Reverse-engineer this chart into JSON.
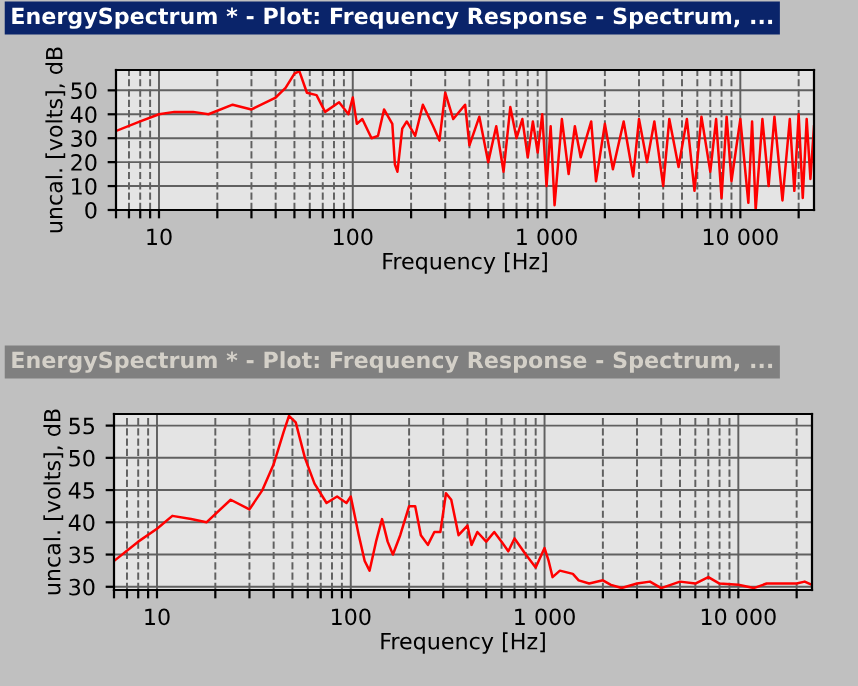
{
  "chart_data": [
    {
      "type": "line",
      "title": "EnergySpectrum * - Plot: Frequency Response - Spectrum, ...",
      "xlabel": "Frequency [Hz]",
      "ylabel": "uncal. [volts], dB",
      "log": "x",
      "grid": true,
      "xlim": [
        6,
        24000
      ],
      "ylim": [
        0,
        58.5
      ],
      "xticks": [
        {
          "value": 6,
          "label": null
        },
        {
          "value": 7,
          "label": null
        },
        {
          "value": 8,
          "label": null
        },
        {
          "value": 9,
          "label": null
        },
        10,
        {
          "value": 20,
          "label": null
        },
        {
          "value": 30,
          "label": null
        },
        {
          "value": 40,
          "label": null
        },
        {
          "value": 50,
          "label": null
        },
        {
          "value": 60,
          "label": null
        },
        {
          "value": 70,
          "label": null
        },
        {
          "value": 80,
          "label": null
        },
        {
          "value": 90,
          "label": null
        },
        100,
        {
          "value": 200,
          "label": null
        },
        {
          "value": 300,
          "label": null
        },
        {
          "value": 400,
          "label": null
        },
        {
          "value": 500,
          "label": null
        },
        {
          "value": 600,
          "label": null
        },
        {
          "value": 700,
          "label": null
        },
        {
          "value": 800,
          "label": null
        },
        {
          "value": 900,
          "label": null
        },
        {
          "value": 1000,
          "label": "1 000"
        },
        {
          "value": 2000,
          "label": null
        },
        {
          "value": 3000,
          "label": null
        },
        {
          "value": 4000,
          "label": null
        },
        {
          "value": 5000,
          "label": null
        },
        {
          "value": 6000,
          "label": null
        },
        {
          "value": 7000,
          "label": null
        },
        {
          "value": 8000,
          "label": null
        },
        {
          "value": 9000,
          "label": null
        },
        {
          "value": 10000,
          "label": "10 000"
        },
        {
          "value": 20000,
          "label": null
        }
      ],
      "yticks": [
        0,
        10,
        20,
        30,
        40,
        50
      ],
      "series": [
        {
          "color": "#ff0000",
          "x": [
            6,
            8,
            10,
            12,
            15,
            18,
            24,
            30,
            40,
            45,
            50,
            53,
            58,
            65,
            72,
            85,
            95,
            100,
            105,
            112,
            125,
            135,
            145,
            160,
            165,
            170,
            180,
            190,
            210,
            230,
            260,
            280,
            300,
            330,
            380,
            400,
            450,
            500,
            550,
            600,
            650,
            700,
            750,
            800,
            850,
            900,
            950,
            1000,
            1050,
            1100,
            1200,
            1300,
            1400,
            1500,
            1700,
            1800,
            2000,
            2200,
            2500,
            2800,
            3000,
            3300,
            3600,
            4000,
            4300,
            4800,
            5300,
            5800,
            6300,
            7000,
            7500,
            8000,
            8500,
            9000,
            10000,
            11000,
            11500,
            12000,
            13000,
            14000,
            15000,
            16500,
            18000,
            19000,
            20000,
            21000,
            22000,
            23000,
            24000
          ],
          "values": [
            33,
            37,
            40,
            41,
            41,
            40,
            44,
            42,
            47,
            51,
            57,
            58,
            49,
            48,
            41,
            45,
            40,
            47,
            36,
            38,
            30,
            31,
            42,
            36,
            19,
            16,
            34,
            37,
            31,
            44,
            35,
            29,
            49,
            38,
            44,
            27,
            39,
            20,
            35,
            16,
            43,
            30,
            38,
            22,
            37,
            24,
            40,
            10,
            35,
            2,
            38,
            15,
            35,
            22,
            37,
            12,
            36,
            17,
            37,
            14,
            38,
            20,
            37,
            10,
            38,
            18,
            38,
            8,
            39,
            16,
            38,
            5,
            39,
            12,
            38,
            3,
            37,
            0,
            38,
            10,
            39,
            4,
            38,
            8,
            40,
            5,
            38,
            13,
            35
          ]
        }
      ]
    },
    {
      "type": "line",
      "title": "EnergySpectrum * - Plot: Frequency Response - Spectrum, ...",
      "xlabel": "Frequency [Hz]",
      "ylabel": "uncal. [volts], dB",
      "log": "x",
      "grid": true,
      "xlim": [
        6,
        24000
      ],
      "ylim": [
        29.5,
        56.8
      ],
      "xticks": [
        {
          "value": 6,
          "label": null
        },
        {
          "value": 7,
          "label": null
        },
        {
          "value": 8,
          "label": null
        },
        {
          "value": 9,
          "label": null
        },
        10,
        {
          "value": 20,
          "label": null
        },
        {
          "value": 30,
          "label": null
        },
        {
          "value": 40,
          "label": null
        },
        {
          "value": 50,
          "label": null
        },
        {
          "value": 60,
          "label": null
        },
        {
          "value": 70,
          "label": null
        },
        {
          "value": 80,
          "label": null
        },
        {
          "value": 90,
          "label": null
        },
        100,
        {
          "value": 200,
          "label": null
        },
        {
          "value": 300,
          "label": null
        },
        {
          "value": 400,
          "label": null
        },
        {
          "value": 500,
          "label": null
        },
        {
          "value": 600,
          "label": null
        },
        {
          "value": 700,
          "label": null
        },
        {
          "value": 800,
          "label": null
        },
        {
          "value": 900,
          "label": null
        },
        {
          "value": 1000,
          "label": "1 000"
        },
        {
          "value": 2000,
          "label": null
        },
        {
          "value": 3000,
          "label": null
        },
        {
          "value": 4000,
          "label": null
        },
        {
          "value": 5000,
          "label": null
        },
        {
          "value": 6000,
          "label": null
        },
        {
          "value": 7000,
          "label": null
        },
        {
          "value": 8000,
          "label": null
        },
        {
          "value": 9000,
          "label": null
        },
        {
          "value": 10000,
          "label": "10 000"
        },
        {
          "value": 20000,
          "label": null
        }
      ],
      "yticks": [
        30,
        35,
        40,
        45,
        50,
        55
      ],
      "series": [
        {
          "color": "#ff0000",
          "x": [
            6,
            8,
            10,
            12,
            15,
            18,
            24,
            30,
            35,
            40,
            45,
            48,
            52,
            58,
            65,
            75,
            85,
            95,
            100,
            110,
            118,
            125,
            135,
            145,
            155,
            165,
            180,
            200,
            215,
            230,
            250,
            270,
            290,
            310,
            330,
            360,
            400,
            420,
            450,
            500,
            550,
            600,
            650,
            700,
            800,
            900,
            1000,
            1050,
            1100,
            1200,
            1400,
            1500,
            1700,
            2000,
            2200,
            2500,
            3000,
            3500,
            4000,
            5000,
            6000,
            7000,
            8000,
            10000,
            12000,
            14000,
            17000,
            20000,
            22000,
            24000
          ],
          "values": [
            34,
            37,
            39,
            41,
            40.5,
            40,
            43.5,
            42,
            45,
            49,
            54,
            56.5,
            55.5,
            50,
            46,
            43,
            44,
            43,
            44,
            38,
            34,
            32.5,
            37,
            40.5,
            37,
            35,
            38,
            42.5,
            42.5,
            38,
            36.5,
            38.5,
            38.5,
            44.5,
            43.5,
            38,
            39.5,
            36.5,
            38.5,
            37,
            38.5,
            37,
            35.5,
            37.5,
            35,
            33,
            36,
            34,
            31.5,
            32.5,
            32,
            31,
            30.5,
            31,
            30.3,
            29.8,
            30.5,
            30.8,
            29.8,
            30.8,
            30.5,
            31.5,
            30.5,
            30.3,
            29.8,
            30.5,
            30.5,
            30.5,
            30.8,
            30.3
          ]
        }
      ]
    }
  ]
}
